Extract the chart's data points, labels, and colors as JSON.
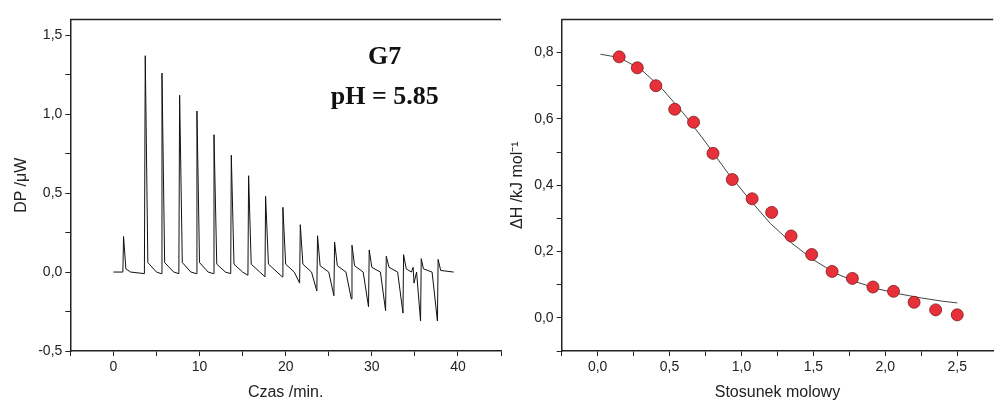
{
  "chart_data": [
    {
      "type": "line",
      "xlabel": "Czas /min.",
      "ylabel": "DP /μW",
      "annotations": [
        "G7",
        "pH = 5.85"
      ],
      "legend": false,
      "xlim": [
        -5,
        45
      ],
      "ylim": [
        -0.5,
        1.6
      ],
      "xticks": [
        {
          "value": -5,
          "label": null
        },
        {
          "value": 0,
          "label": "0"
        },
        {
          "value": 5,
          "label": null
        },
        {
          "value": 10,
          "label": "10"
        },
        {
          "value": 15,
          "label": null
        },
        {
          "value": 20,
          "label": "20"
        },
        {
          "value": 25,
          "label": null
        },
        {
          "value": 30,
          "label": "30"
        },
        {
          "value": 35,
          "label": null
        },
        {
          "value": 40,
          "label": "40"
        },
        {
          "value": 45,
          "label": null
        }
      ],
      "yticks": [
        {
          "value": -0.5,
          "label": "-0,5"
        },
        {
          "value": -0.25,
          "label": null
        },
        {
          "value": 0,
          "label": "0,0"
        },
        {
          "value": 0.25,
          "label": null
        },
        {
          "value": 0.5,
          "label": "0,5"
        },
        {
          "value": 0.75,
          "label": null
        },
        {
          "value": 1,
          "label": "1,0"
        },
        {
          "value": 1.25,
          "label": null
        },
        {
          "value": 1.5,
          "label": "1,5"
        }
      ],
      "series": [
        {
          "color": "#111111",
          "x": [
            0,
            1.1,
            1.18,
            1.45,
            2.0,
            3.6,
            3.7,
            4.0,
            5.0,
            5.55,
            5.64,
            5.95,
            7.0,
            7.6,
            7.69,
            8.0,
            9.0,
            9.62,
            9.7,
            10.0,
            11.0,
            11.6,
            11.68,
            12.0,
            13.0,
            13.62,
            13.69,
            14.0,
            15.0,
            15.62,
            15.7,
            16.0,
            17.0,
            17.6,
            17.67,
            18.0,
            19.0,
            19.6,
            19.68,
            20.0,
            21.0,
            21.62,
            21.7,
            22.0,
            23.0,
            23.62,
            23.7,
            24.0,
            25.0,
            25.6,
            25.68,
            26.0,
            27.0,
            27.62,
            27.7,
            28.0,
            29.0,
            29.62,
            29.7,
            30.0,
            31.0,
            31.6,
            31.68,
            32.0,
            33.0,
            33.62,
            33.69,
            34.0,
            34.6,
            34.8,
            34.9,
            35.2,
            35.66,
            35.74,
            36.0,
            37.0,
            37.62,
            37.7,
            38.0,
            39.5
          ],
          "values": [
            0,
            0,
            0.225,
            0.02,
            0,
            -0.01,
            1.37,
            0.06,
            0,
            -0.01,
            1.26,
            0.06,
            0,
            -0.01,
            1.12,
            0.06,
            0,
            -0.01,
            1.02,
            0.06,
            0,
            -0.01,
            0.87,
            0.05,
            0,
            -0.01,
            0.74,
            0.05,
            0,
            -0.02,
            0.61,
            0.05,
            0,
            -0.03,
            0.48,
            0.05,
            0,
            -0.03,
            0.41,
            0.05,
            0,
            -0.07,
            0.3,
            0.05,
            0,
            -0.12,
            0.23,
            0.04,
            0,
            -0.15,
            0.19,
            0.04,
            0,
            -0.17,
            0.17,
            0.04,
            0,
            -0.22,
            0.14,
            0.03,
            0,
            -0.245,
            0.1,
            0.03,
            0,
            -0.26,
            0.11,
            0.02,
            0,
            0.03,
            -0.07,
            0,
            -0.31,
            0.085,
            0.02,
            0,
            -0.31,
            0.08,
            0.01,
            0
          ]
        }
      ]
    },
    {
      "type": "scatter",
      "xlabel": "Stosunek molowy",
      "ylabel": "ΔH /kJ mol⁻¹",
      "legend": false,
      "xlim": [
        -0.25,
        2.75
      ],
      "ylim": [
        -0.1,
        0.9
      ],
      "xticks": [
        {
          "value": -0.25,
          "label": null
        },
        {
          "value": 0,
          "label": "0,0"
        },
        {
          "value": 0.25,
          "label": null
        },
        {
          "value": 0.5,
          "label": "0,5"
        },
        {
          "value": 0.75,
          "label": null
        },
        {
          "value": 1,
          "label": "1,0"
        },
        {
          "value": 1.25,
          "label": null
        },
        {
          "value": 1.5,
          "label": "1,5"
        },
        {
          "value": 1.75,
          "label": null
        },
        {
          "value": 2,
          "label": "2,0"
        },
        {
          "value": 2.25,
          "label": null
        },
        {
          "value": 2.5,
          "label": "2,5"
        }
      ],
      "yticks": [
        {
          "value": -0.1,
          "label": null
        },
        {
          "value": 0,
          "label": "0,0"
        },
        {
          "value": 0.1,
          "label": null
        },
        {
          "value": 0.2,
          "label": "0,2"
        },
        {
          "value": 0.3,
          "label": null
        },
        {
          "value": 0.4,
          "label": "0,4"
        },
        {
          "value": 0.5,
          "label": null
        },
        {
          "value": 0.6,
          "label": "0,6"
        },
        {
          "value": 0.7,
          "label": null
        },
        {
          "value": 0.8,
          "label": "0,8"
        }
      ],
      "series": [
        {
          "marker": "circle",
          "color": "#e8303a",
          "x": [
            0.15,
            0.276,
            0.405,
            0.536,
            0.667,
            0.802,
            0.936,
            1.074,
            1.21,
            1.345,
            1.488,
            1.63,
            1.771,
            1.914,
            2.057,
            2.2,
            2.35,
            2.5
          ],
          "values": [
            0.787,
            0.754,
            0.7,
            0.629,
            0.59,
            0.496,
            0.417,
            0.359,
            0.318,
            0.247,
            0.191,
            0.14,
            0.119,
            0.093,
            0.08,
            0.047,
            0.024,
            0.009
          ]
        },
        {
          "type": "line",
          "marker": "none",
          "color": "#444444",
          "x": [
            0.02,
            0.15,
            0.3,
            0.45,
            0.6,
            0.75,
            0.9,
            1.05,
            1.2,
            1.35,
            1.5,
            1.65,
            1.8,
            1.95,
            2.1,
            2.25,
            2.4,
            2.5
          ],
          "values": [
            0.795,
            0.785,
            0.75,
            0.69,
            0.615,
            0.53,
            0.44,
            0.36,
            0.285,
            0.225,
            0.175,
            0.135,
            0.108,
            0.087,
            0.072,
            0.06,
            0.05,
            0.045
          ]
        }
      ]
    }
  ]
}
